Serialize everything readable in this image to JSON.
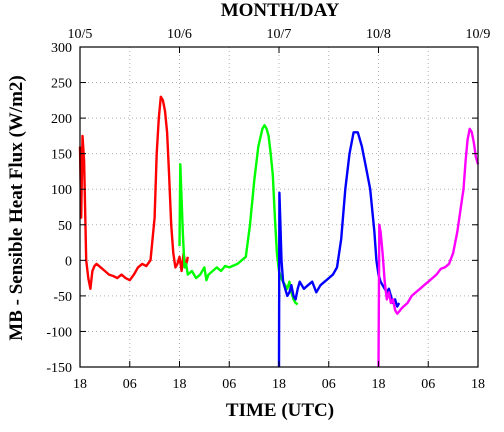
{
  "chart_data": {
    "type": "line",
    "title": "",
    "xlabel": "TIME (UTC)",
    "ylabel": "MB - Sensible Heat Flux (W/m2)",
    "top_axis_label": "MONTH/DAY",
    "ylim": [
      -150,
      300
    ],
    "xlim": [
      18,
      114
    ],
    "y_ticks": [
      -150,
      -100,
      -50,
      0,
      50,
      100,
      150,
      200,
      250,
      300
    ],
    "bottom_ticks": [
      {
        "x": 18,
        "label": "18"
      },
      {
        "x": 30,
        "label": "06"
      },
      {
        "x": 42,
        "label": "18"
      },
      {
        "x": 54,
        "label": "06"
      },
      {
        "x": 66,
        "label": "18"
      },
      {
        "x": 78,
        "label": "06"
      },
      {
        "x": 90,
        "label": "18"
      },
      {
        "x": 102,
        "label": "06"
      },
      {
        "x": 114,
        "label": "18"
      }
    ],
    "top_ticks": [
      {
        "x": 18,
        "label": "10/5"
      },
      {
        "x": 42,
        "label": "10/6"
      },
      {
        "x": 66,
        "label": "10/7"
      },
      {
        "x": 90,
        "label": "10/8"
      },
      {
        "x": 114,
        "label": "10/9"
      }
    ],
    "x_unit_note": "hours since 10/5 00 UTC",
    "grid": true,
    "series": [
      {
        "color": "#ff0000",
        "x": [
          18,
          18.3,
          18.6,
          19,
          19.5,
          20,
          20.5,
          21,
          21.5,
          22,
          23,
          24,
          25,
          26,
          27,
          28,
          29,
          30,
          31,
          32,
          33,
          34,
          35,
          36,
          36.5,
          37,
          37.5,
          38,
          38.5,
          39,
          39.5,
          40,
          40.5,
          41,
          41.5,
          42,
          42.5,
          43,
          43.5,
          44
        ],
        "y": [
          160,
          60,
          175,
          140,
          0,
          -25,
          -40,
          -15,
          -8,
          -5,
          -10,
          -15,
          -20,
          -22,
          -25,
          -20,
          -25,
          -28,
          -20,
          -10,
          -5,
          -8,
          0,
          60,
          150,
          200,
          230,
          225,
          210,
          180,
          120,
          50,
          10,
          -10,
          -5,
          5,
          -15,
          10,
          -10,
          5
        ],
        "legend": ""
      },
      {
        "color": "#00ff00",
        "x": [
          42,
          42.2,
          42.4,
          42.8,
          43.2,
          43.6,
          44,
          45,
          46,
          47,
          48,
          48.5,
          49,
          50,
          51,
          52,
          53,
          54,
          56,
          58,
          59,
          60,
          61,
          62,
          62.5,
          63,
          63.5,
          64,
          64.5,
          65,
          65.5,
          66,
          66.5,
          67,
          67.5,
          68,
          68.5,
          69,
          69.5,
          70,
          70.5
        ],
        "y": [
          20,
          135,
          100,
          40,
          -10,
          -5,
          -20,
          -15,
          -25,
          -20,
          -10,
          -28,
          -20,
          -15,
          -10,
          -15,
          -8,
          -10,
          -5,
          5,
          50,
          110,
          160,
          185,
          190,
          185,
          175,
          150,
          120,
          60,
          10,
          -15,
          -25,
          -30,
          -35,
          -40,
          -30,
          -45,
          -55,
          -60,
          -62
        ]
      },
      {
        "color": "#0000ff",
        "x": [
          66,
          66.1,
          66.3,
          66.6,
          67,
          67.5,
          68,
          68.5,
          69,
          69.5,
          70,
          70.5,
          71,
          72,
          73,
          74,
          75,
          76,
          77,
          78,
          79,
          80,
          81,
          82,
          83,
          84,
          85,
          86,
          87,
          88,
          88.5,
          89,
          89.5,
          90,
          90.5,
          91,
          91.5,
          92,
          92.5,
          93,
          93.5,
          94,
          94.5,
          95
        ],
        "y": [
          -150,
          95,
          60,
          0,
          -30,
          -40,
          -50,
          -45,
          -35,
          -50,
          -55,
          -40,
          -30,
          -40,
          -35,
          -30,
          -45,
          -35,
          -30,
          -25,
          -20,
          -10,
          30,
          100,
          150,
          180,
          180,
          160,
          130,
          100,
          70,
          40,
          0,
          -20,
          -30,
          -35,
          -40,
          -45,
          -40,
          -50,
          -60,
          -55,
          -65,
          -60
        ]
      },
      {
        "color": "#ff00ff",
        "x": [
          90,
          90.2,
          90.5,
          91,
          91.5,
          92,
          92.5,
          93,
          93.5,
          94,
          94.5,
          95,
          95.5,
          96,
          97,
          98,
          99,
          100,
          101,
          102,
          103,
          104,
          105,
          106,
          107,
          108,
          109,
          110,
          110.5,
          111,
          111.5,
          112,
          112.5,
          113,
          113.5,
          114
        ],
        "y": [
          -150,
          50,
          40,
          10,
          -30,
          -55,
          -45,
          -60,
          -55,
          -70,
          -75,
          -72,
          -68,
          -65,
          -60,
          -50,
          -45,
          -40,
          -35,
          -30,
          -25,
          -20,
          -12,
          -10,
          -5,
          10,
          40,
          80,
          100,
          140,
          170,
          185,
          180,
          165,
          145,
          135
        ]
      }
    ]
  }
}
